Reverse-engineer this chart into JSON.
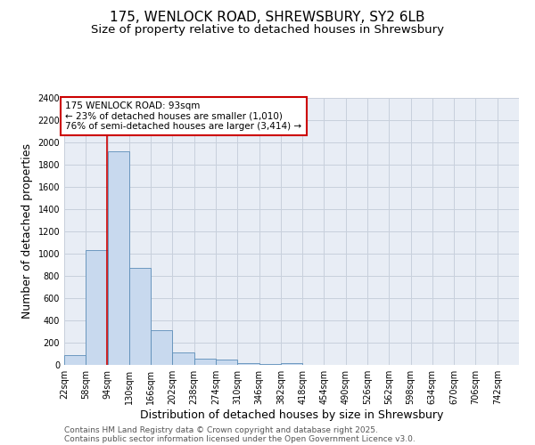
{
  "title1": "175, WENLOCK ROAD, SHREWSBURY, SY2 6LB",
  "title2": "Size of property relative to detached houses in Shrewsbury",
  "xlabel": "Distribution of detached houses by size in Shrewsbury",
  "ylabel": "Number of detached properties",
  "footnote1": "Contains HM Land Registry data © Crown copyright and database right 2025.",
  "footnote2": "Contains public sector information licensed under the Open Government Licence v3.0.",
  "bin_edges": [
    22,
    58,
    94,
    130,
    166,
    202,
    238,
    274,
    310,
    346,
    382,
    418,
    454,
    490,
    526,
    562,
    598,
    634,
    670,
    706,
    742
  ],
  "bar_heights": [
    90,
    1030,
    1920,
    870,
    310,
    110,
    55,
    45,
    20,
    10,
    15,
    0,
    0,
    0,
    0,
    0,
    0,
    0,
    0,
    0
  ],
  "bar_color": "#c8d9ee",
  "bar_edge_color": "#5b8db8",
  "grid_color": "#c8d0dc",
  "background_color": "#e8edf5",
  "property_line_x": 93,
  "property_line_color": "#cc0000",
  "annotation_box_text": "175 WENLOCK ROAD: 93sqm\n← 23% of detached houses are smaller (1,010)\n76% of semi-detached houses are larger (3,414) →",
  "annotation_box_color": "#cc0000",
  "ylim": [
    0,
    2400
  ],
  "yticks": [
    0,
    200,
    400,
    600,
    800,
    1000,
    1200,
    1400,
    1600,
    1800,
    2000,
    2200,
    2400
  ],
  "title_fontsize": 11,
  "subtitle_fontsize": 9.5,
  "axis_label_fontsize": 9,
  "tick_fontsize": 7,
  "annotation_fontsize": 7.5,
  "footnote_fontsize": 6.5
}
